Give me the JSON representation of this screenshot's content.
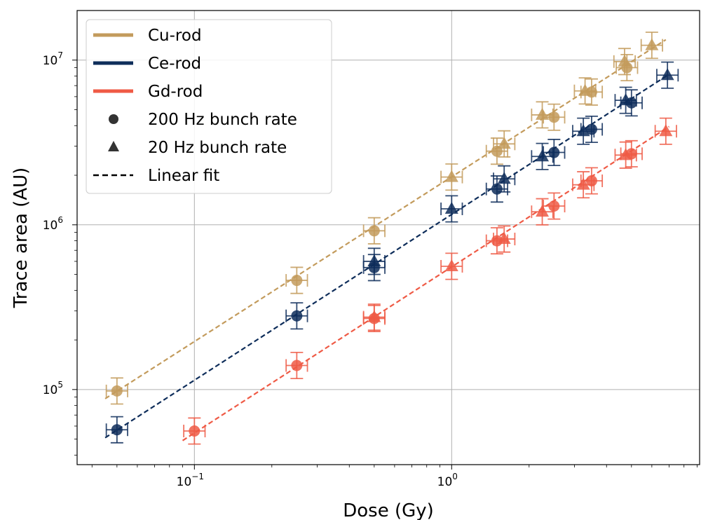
{
  "chart_data": {
    "type": "scatter",
    "xlabel": "Dose (Gy)",
    "ylabel": "Trace area (AU)",
    "x_scale": "log",
    "y_scale": "log",
    "xlim": [
      0.035,
      9.2
    ],
    "ylim": [
      35000,
      20000000
    ],
    "grid": true,
    "legend_position": "top-left",
    "x_ticks": [
      {
        "value": 0.1,
        "base": "10",
        "exp": "−1"
      },
      {
        "value": 1,
        "base": "10",
        "exp": "0"
      }
    ],
    "y_ticks": [
      {
        "value": 100000,
        "base": "10",
        "exp": "5"
      },
      {
        "value": 1000000,
        "base": "10",
        "exp": "6"
      },
      {
        "value": 10000000,
        "base": "10",
        "exp": "7"
      }
    ],
    "series": [
      {
        "name": "Cu-rod",
        "color": "#c39b5c",
        "fit": {
          "x": [
            0.045,
            6.8
          ],
          "y": [
            88000,
            13300000
          ]
        },
        "points_200hz": [
          {
            "x": 0.05,
            "y": 98000
          },
          {
            "x": 0.25,
            "y": 460000
          },
          {
            "x": 0.5,
            "y": 920000
          },
          {
            "x": 1.5,
            "y": 2800000
          },
          {
            "x": 2.5,
            "y": 4500000
          },
          {
            "x": 3.5,
            "y": 6400000
          },
          {
            "x": 4.8,
            "y": 9000000
          }
        ],
        "points_20hz": [
          {
            "x": 1.0,
            "y": 1950000
          },
          {
            "x": 1.6,
            "y": 3100000
          },
          {
            "x": 2.25,
            "y": 4650000
          },
          {
            "x": 3.3,
            "y": 6500000
          },
          {
            "x": 4.7,
            "y": 9800000
          },
          {
            "x": 6.0,
            "y": 12300000
          }
        ]
      },
      {
        "name": "Ce-rod",
        "color": "#0e2d5a",
        "fit": {
          "x": [
            0.045,
            7.0
          ],
          "y": [
            51000,
            8200000
          ]
        },
        "points_200hz": [
          {
            "x": 0.05,
            "y": 57000
          },
          {
            "x": 0.25,
            "y": 280000
          },
          {
            "x": 0.5,
            "y": 550000
          },
          {
            "x": 1.5,
            "y": 1650000
          },
          {
            "x": 2.5,
            "y": 2750000
          },
          {
            "x": 3.5,
            "y": 3800000
          },
          {
            "x": 5.0,
            "y": 5500000
          }
        ],
        "points_20hz": [
          {
            "x": 0.5,
            "y": 600000
          },
          {
            "x": 1.0,
            "y": 1250000
          },
          {
            "x": 1.6,
            "y": 1900000
          },
          {
            "x": 2.25,
            "y": 2600000
          },
          {
            "x": 3.25,
            "y": 3700000
          },
          {
            "x": 4.75,
            "y": 5700000
          },
          {
            "x": 6.9,
            "y": 8100000
          }
        ]
      },
      {
        "name": "Gd-rod",
        "color": "#ef5a45",
        "fit": {
          "x": [
            0.09,
            7.0
          ],
          "y": [
            49000,
            3950000
          ]
        },
        "points_200hz": [
          {
            "x": 0.1,
            "y": 56000
          },
          {
            "x": 0.25,
            "y": 140000
          },
          {
            "x": 0.5,
            "y": 270000
          },
          {
            "x": 1.5,
            "y": 800000
          },
          {
            "x": 2.5,
            "y": 1300000
          },
          {
            "x": 3.5,
            "y": 1850000
          },
          {
            "x": 5.0,
            "y": 2700000
          }
        ],
        "points_20hz": [
          {
            "x": 0.5,
            "y": 275000
          },
          {
            "x": 1.0,
            "y": 560000
          },
          {
            "x": 1.6,
            "y": 820000
          },
          {
            "x": 2.25,
            "y": 1200000
          },
          {
            "x": 3.25,
            "y": 1750000
          },
          {
            "x": 4.75,
            "y": 2650000
          },
          {
            "x": 6.8,
            "y": 3700000
          }
        ]
      }
    ],
    "legend": [
      {
        "label": "Cu-rod",
        "kind": "line",
        "color": "#c39b5c"
      },
      {
        "label": "Ce-rod",
        "kind": "line",
        "color": "#0e2d5a"
      },
      {
        "label": "Gd-rod",
        "kind": "line",
        "color": "#ef5a45"
      },
      {
        "label": "200 Hz bunch rate",
        "kind": "circle",
        "color": "#333333"
      },
      {
        "label": "20 Hz bunch rate",
        "kind": "triangle",
        "color": "#333333"
      },
      {
        "label": "Linear fit",
        "kind": "dashed",
        "color": "#000000"
      }
    ]
  }
}
